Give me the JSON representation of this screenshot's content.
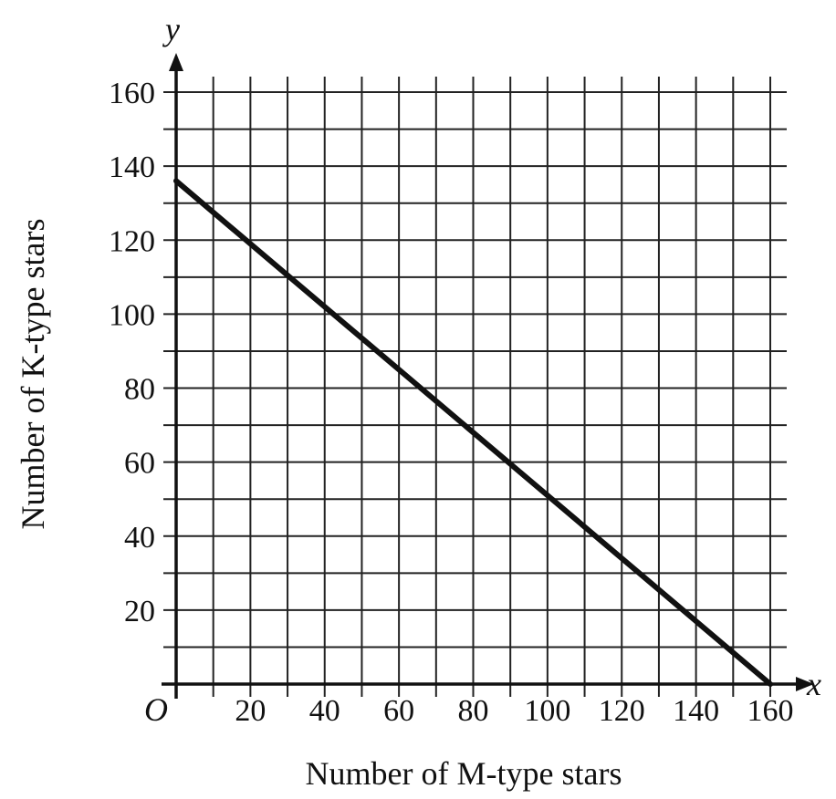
{
  "chart_data": {
    "type": "line",
    "title": "",
    "xlabel": "Number of M-type stars",
    "ylabel": "Number of K-type stars",
    "x_axis_var": "x",
    "y_axis_var": "y",
    "origin_label": "O",
    "xlim": [
      0,
      160
    ],
    "ylim": [
      0,
      160
    ],
    "x_ticks": [
      20,
      40,
      60,
      80,
      100,
      120,
      140,
      160
    ],
    "y_ticks": [
      20,
      40,
      60,
      80,
      100,
      120,
      140,
      160
    ],
    "x_tick_labels": [
      "20",
      "40",
      "60",
      "80",
      "100",
      "120",
      "140",
      "160"
    ],
    "y_tick_labels": [
      "20",
      "40",
      "60",
      "80",
      "100",
      "120",
      "140",
      "160"
    ],
    "grid": true,
    "grid_step": 10,
    "series": [
      {
        "x": [
          0,
          160
        ],
        "y": [
          136,
          0
        ]
      }
    ]
  }
}
